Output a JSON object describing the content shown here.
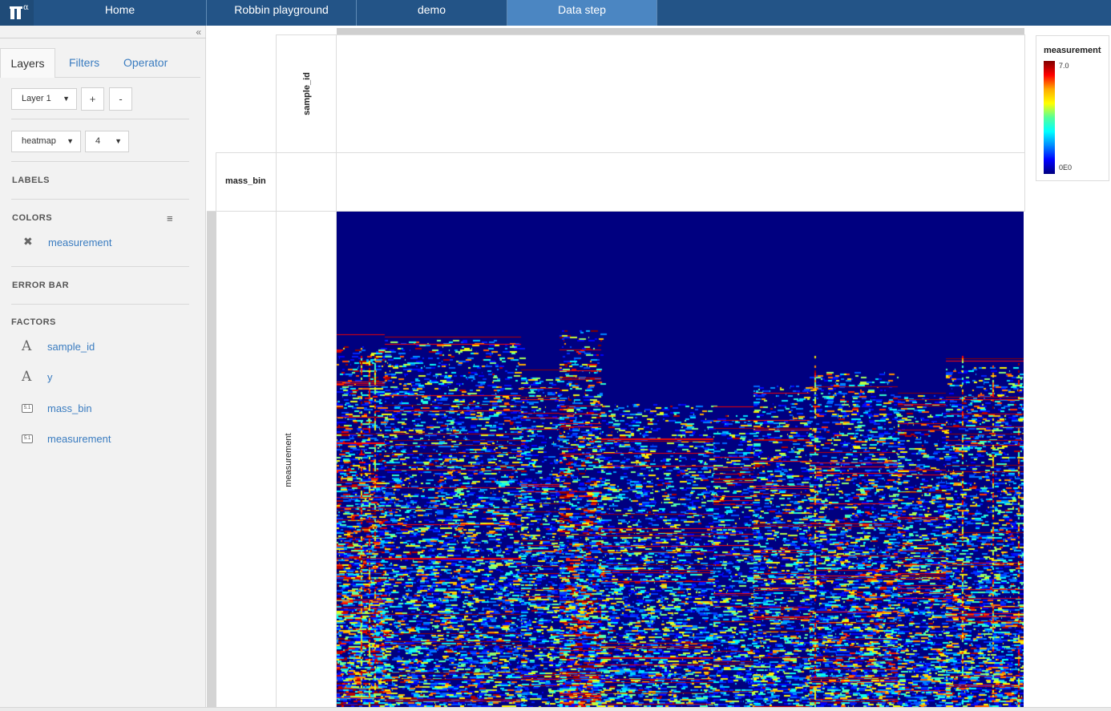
{
  "nav": {
    "logo_sup": "α",
    "tabs": [
      {
        "label": "Home",
        "active": false
      },
      {
        "label": "Robbin playground",
        "active": false
      },
      {
        "label": "demo",
        "active": false
      },
      {
        "label": "Data step",
        "active": true
      }
    ]
  },
  "sidebar": {
    "collapse_glyph": "«",
    "tabs": [
      "Layers",
      "Filters",
      "Operator"
    ],
    "layer_select": "Layer 1",
    "add_label": "+",
    "remove_label": "-",
    "geom_select": "heatmap",
    "size_select": "4",
    "labels_header": "LABELS",
    "colors_header": "COLORS",
    "color_item": "measurement",
    "error_bar_header": "ERROR BAR",
    "factors_header": "FACTORS",
    "factors": [
      {
        "name": "sample_id",
        "icon": "text-factor-icon",
        "glyph": "A"
      },
      {
        "name": "y",
        "icon": "text-factor-icon",
        "glyph": "A"
      },
      {
        "name": "mass_bin",
        "icon": "numeric-factor-icon",
        "glyph": "5.1"
      },
      {
        "name": "measurement",
        "icon": "numeric-factor-icon",
        "glyph": "5.1"
      }
    ]
  },
  "plot": {
    "col_facet_label": "sample_id",
    "row_facet_label": "mass_bin",
    "y_axis_label": "measurement"
  },
  "legend": {
    "title": "measurement",
    "max_label": "7.0",
    "min_label": "0E0"
  },
  "chart_data": {
    "type": "heatmap",
    "x_factor": "sample_id",
    "y_factor": "measurement",
    "color_factor": "measurement",
    "color_range": [
      0,
      7
    ],
    "colormap": "jet",
    "background_value": 0
  }
}
